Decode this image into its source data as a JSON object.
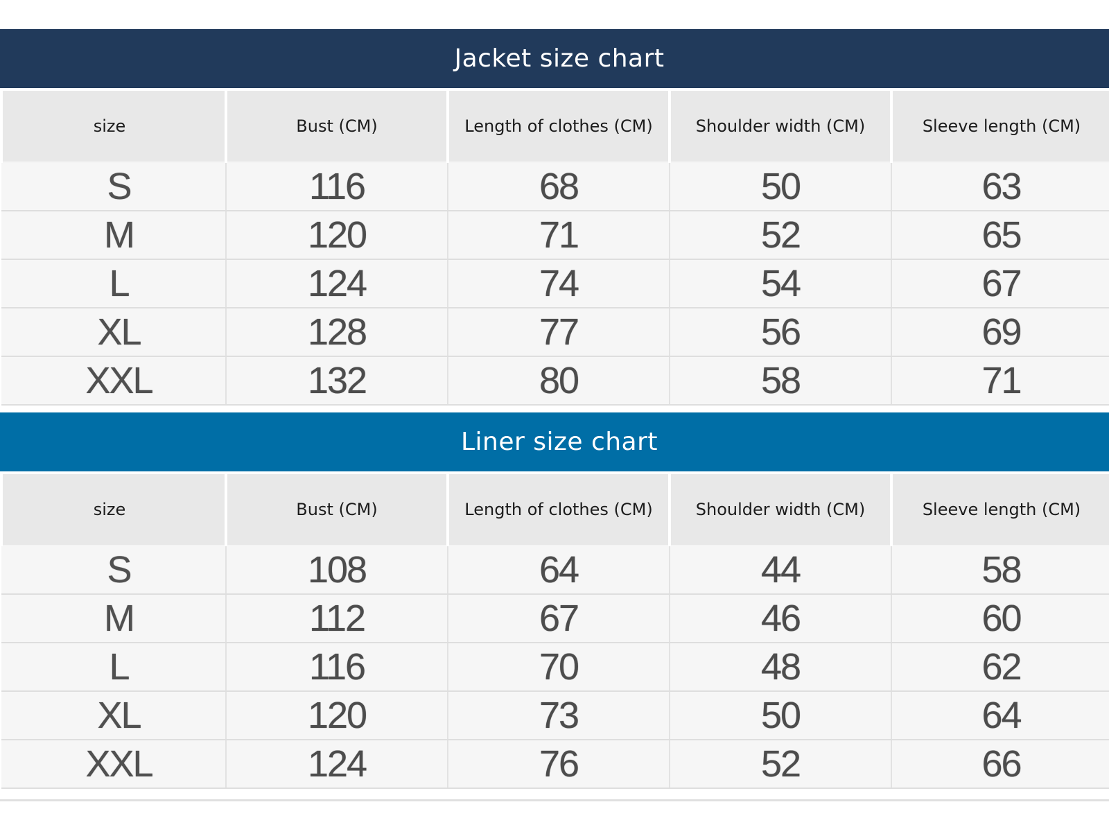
{
  "jacket": {
    "title": "Jacket size chart",
    "accent_color": "#213a5b",
    "headers": [
      "size",
      "Bust (CM)",
      "Length of clothes (CM)",
      "Shoulder width (CM)",
      "Sleeve length (CM)"
    ],
    "rows": [
      [
        "S",
        "116",
        "68",
        "50",
        "63"
      ],
      [
        "M",
        "120",
        "71",
        "52",
        "65"
      ],
      [
        "L",
        "124",
        "74",
        "54",
        "67"
      ],
      [
        "XL",
        "128",
        "77",
        "56",
        "69"
      ],
      [
        "XXL",
        "132",
        "80",
        "58",
        "71"
      ]
    ]
  },
  "liner": {
    "title": "Liner size chart",
    "accent_color": "#006ea6",
    "headers": [
      "size",
      "Bust (CM)",
      "Length of clothes (CM)",
      "Shoulder width (CM)",
      "Sleeve length (CM)"
    ],
    "rows": [
      [
        "S",
        "108",
        "64",
        "44",
        "58"
      ],
      [
        "M",
        "112",
        "67",
        "46",
        "60"
      ],
      [
        "L",
        "116",
        "70",
        "48",
        "62"
      ],
      [
        "XL",
        "120",
        "73",
        "50",
        "64"
      ],
      [
        "XXL",
        "124",
        "76",
        "52",
        "66"
      ]
    ]
  }
}
